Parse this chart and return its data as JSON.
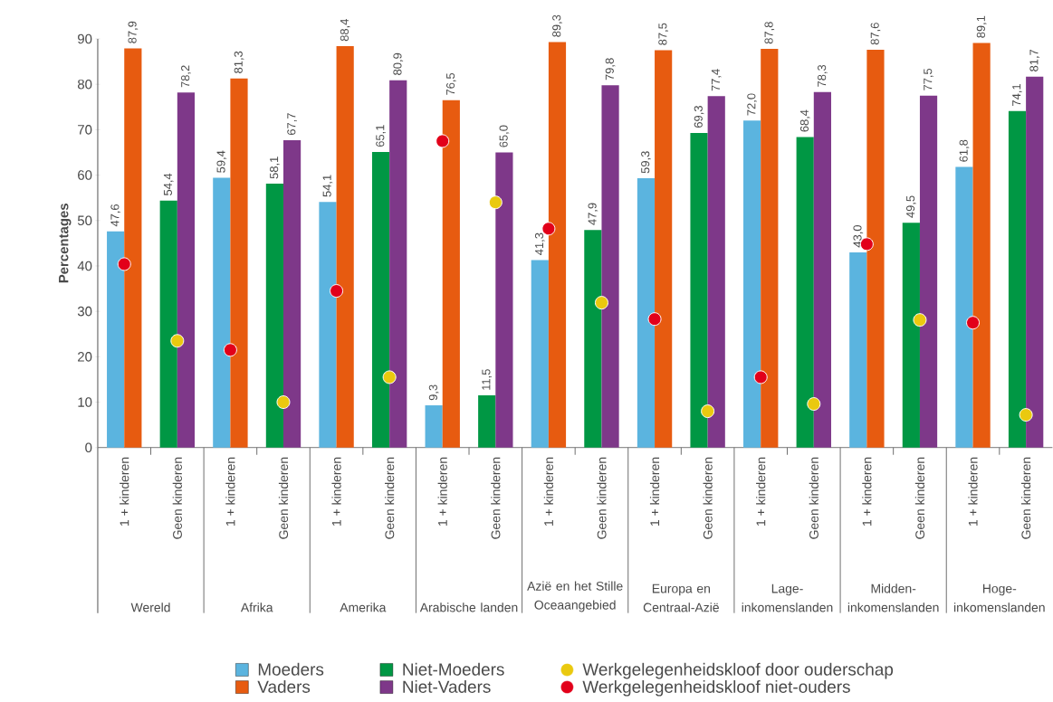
{
  "chart_data": {
    "type": "bar",
    "ylabel": "Percentages",
    "categories": [
      "1 + kinderen",
      "Geen kinderen",
      "1 + kinderen",
      "Geen kinderen",
      "1 + kinderen",
      "Geen kinderen",
      "1 + kinderen",
      "Geen kinderen",
      "1 + kinderen",
      "Geen kinderen",
      "1 + kinderen",
      "Geen kinderen",
      "1 + kinderen",
      "Geen kinderen",
      "1 + kinderen",
      "Geen kinderen",
      "1 + kinderen",
      "Geen kinderen"
    ],
    "annotations": [
      "Wereld",
      "Afrika",
      "Amerika",
      "Arabische landen",
      "Azië en het Stille Oceaangebied",
      "Europa en Centraal-Azië",
      "Lage-inkomenslanden",
      "Midden-inkomenslanden",
      "Hoge-inkomenslanden"
    ],
    "ylim": [
      0,
      90
    ],
    "yticks": [
      0,
      10,
      20,
      30,
      40,
      50,
      60,
      70,
      80,
      90
    ],
    "legend": "bottom",
    "marker": "circle",
    "series": [
      {
        "name": "Moeders",
        "color": "#5bb4df",
        "values": [
          47.6,
          null,
          59.4,
          null,
          54.1,
          null,
          9.3,
          null,
          41.3,
          null,
          59.3,
          null,
          72.0,
          null,
          43.0,
          null,
          61.8,
          null
        ],
        "value_labels": [
          "47,6",
          null,
          "59,4",
          null,
          "54,1",
          null,
          "9,3",
          null,
          "41,3",
          null,
          "59,3",
          null,
          "72,0",
          null,
          "43,0",
          null,
          "61,8",
          null
        ]
      },
      {
        "name": "Vaders",
        "color": "#e75b10",
        "values": [
          87.9,
          null,
          81.3,
          null,
          88.4,
          null,
          76.5,
          null,
          89.3,
          null,
          87.5,
          null,
          87.8,
          null,
          87.6,
          null,
          89.1,
          null
        ],
        "value_labels": [
          "87,9",
          null,
          "81,3",
          null,
          "88,4",
          null,
          "76,5",
          null,
          "89,3",
          null,
          "87,5",
          null,
          "87,8",
          null,
          "87,6",
          null,
          "89,1",
          null
        ]
      },
      {
        "name": "Niet-Moeders",
        "color": "#009744",
        "values": [
          null,
          54.4,
          null,
          58.1,
          null,
          65.1,
          null,
          11.5,
          null,
          47.9,
          null,
          69.3,
          null,
          68.4,
          null,
          49.5,
          null,
          74.1
        ],
        "value_labels": [
          null,
          "54,4",
          null,
          "58,1",
          null,
          "65,1",
          null,
          "11,5",
          null,
          "47,9",
          null,
          "69,3",
          null,
          "68,4",
          null,
          "49,5",
          null,
          "74,1"
        ]
      },
      {
        "name": "Niet-Vaders",
        "color": "#7e3889",
        "values": [
          null,
          78.2,
          null,
          67.7,
          null,
          80.9,
          null,
          65.0,
          null,
          79.8,
          null,
          77.4,
          null,
          78.3,
          null,
          77.5,
          null,
          81.7
        ],
        "value_labels": [
          null,
          "78,2",
          null,
          "67,7",
          null,
          "80,9",
          null,
          "65,0",
          null,
          "79,8",
          null,
          "77,4",
          null,
          "78,3",
          null,
          "77,5",
          null,
          "81,7"
        ]
      },
      {
        "name": "Werkgelegenheidskloof door ouderschap",
        "type": "scatter",
        "color": "#eac90f",
        "values": [
          null,
          23.5,
          null,
          10.0,
          null,
          15.5,
          null,
          54.0,
          null,
          31.9,
          null,
          8.0,
          null,
          9.6,
          null,
          28.1,
          null,
          7.2
        ]
      },
      {
        "name": "Werkgelegenheidskloof niet-ouders",
        "type": "scatter",
        "color": "#e2001a",
        "values": [
          40.4,
          null,
          21.5,
          null,
          34.5,
          null,
          67.5,
          null,
          48.2,
          null,
          28.3,
          null,
          15.5,
          null,
          44.8,
          null,
          27.5,
          null
        ]
      }
    ]
  }
}
